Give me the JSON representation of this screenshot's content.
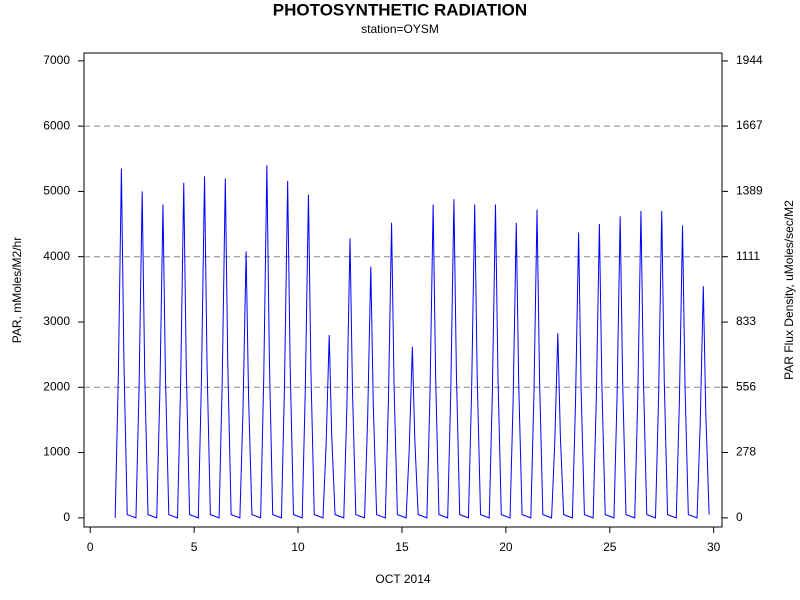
{
  "chart_data": {
    "type": "line",
    "title": "PHOTOSYNTHETIC RADIATION",
    "subtitle": "station=OYSM",
    "xlabel": "OCT 2014",
    "ylabel": "PAR, mMoles/M2/hr",
    "y2label": "PAR Flux Density, uMoles/sec/M2",
    "xlim": [
      -0.3,
      30.4
    ],
    "xticks": [
      0,
      5,
      10,
      15,
      20,
      25,
      30
    ],
    "ylim": [
      -140,
      7120
    ],
    "yticks": [
      0,
      1000,
      2000,
      3000,
      4000,
      5000,
      6000,
      7000
    ],
    "y2lim": [
      -38.9,
      1977.8
    ],
    "y2ticks": [
      0,
      278,
      556,
      833,
      1111,
      1389,
      1667,
      1944
    ],
    "grid_values": [
      2000,
      4000,
      6000
    ],
    "x": [
      1.2,
      1.35,
      1.5,
      1.62,
      1.78,
      2.2,
      2.35,
      2.5,
      2.62,
      2.78,
      3.2,
      3.35,
      3.5,
      3.62,
      3.78,
      4.2,
      4.35,
      4.5,
      4.62,
      4.78,
      5.2,
      5.35,
      5.5,
      5.62,
      5.78,
      6.2,
      6.35,
      6.5,
      6.62,
      6.78,
      7.2,
      7.35,
      7.5,
      7.62,
      7.78,
      8.2,
      8.35,
      8.5,
      8.62,
      8.78,
      9.2,
      9.35,
      9.5,
      9.62,
      9.78,
      10.2,
      10.35,
      10.5,
      10.62,
      10.78,
      11.2,
      11.35,
      11.5,
      11.62,
      11.78,
      12.2,
      12.35,
      12.5,
      12.62,
      12.78,
      13.2,
      13.35,
      13.5,
      13.62,
      13.78,
      14.2,
      14.35,
      14.5,
      14.62,
      14.78,
      15.2,
      15.35,
      15.5,
      15.62,
      15.78,
      16.2,
      16.35,
      16.5,
      16.62,
      16.78,
      17.2,
      17.35,
      17.5,
      17.62,
      17.78,
      18.2,
      18.35,
      18.5,
      18.62,
      18.78,
      19.2,
      19.35,
      19.5,
      19.62,
      19.78,
      20.2,
      20.35,
      20.5,
      20.62,
      20.78,
      21.2,
      21.35,
      21.5,
      21.62,
      21.78,
      22.2,
      22.35,
      22.5,
      22.62,
      22.78,
      23.2,
      23.35,
      23.5,
      23.62,
      23.78,
      24.2,
      24.35,
      24.5,
      24.62,
      24.78,
      25.2,
      25.35,
      25.5,
      25.62,
      25.78,
      26.2,
      26.35,
      26.5,
      26.62,
      26.78,
      27.2,
      27.35,
      27.5,
      27.62,
      27.78,
      28.2,
      28.35,
      28.5,
      28.62,
      28.78,
      29.2,
      29.35,
      29.5,
      29.62,
      29.78
    ],
    "series": [
      {
        "color": "#0000ff",
        "values": [
          0,
          2140,
          5350,
          2410,
          50,
          0,
          2000,
          5000,
          2250,
          50,
          0,
          1920,
          4800,
          2160,
          50,
          0,
          2050,
          5130,
          2310,
          50,
          0,
          2090,
          5230,
          2350,
          50,
          0,
          2080,
          5200,
          2340,
          50,
          0,
          1630,
          4080,
          1840,
          50,
          0,
          2160,
          5400,
          2430,
          50,
          0,
          2060,
          5160,
          2320,
          50,
          0,
          1980,
          4950,
          2230,
          50,
          0,
          1120,
          2800,
          1260,
          50,
          0,
          1710,
          4280,
          1930,
          50,
          0,
          1540,
          3850,
          1730,
          50,
          0,
          1810,
          4520,
          2030,
          50,
          0,
          1050,
          2620,
          1180,
          50,
          0,
          1920,
          4800,
          2160,
          50,
          0,
          1950,
          4880,
          2200,
          50,
          0,
          1920,
          4800,
          2160,
          50,
          0,
          1920,
          4800,
          2160,
          50,
          0,
          1810,
          4520,
          2030,
          50,
          0,
          1890,
          4720,
          2120,
          50,
          0,
          1130,
          2830,
          1270,
          50,
          0,
          1750,
          4370,
          1970,
          50,
          0,
          1800,
          4500,
          2030,
          50,
          0,
          1850,
          4620,
          2080,
          50,
          0,
          1880,
          4700,
          2120,
          50,
          0,
          1880,
          4700,
          2120,
          50,
          0,
          1790,
          4480,
          2020,
          50,
          0,
          1420,
          3550,
          1600,
          50
        ]
      }
    ]
  }
}
